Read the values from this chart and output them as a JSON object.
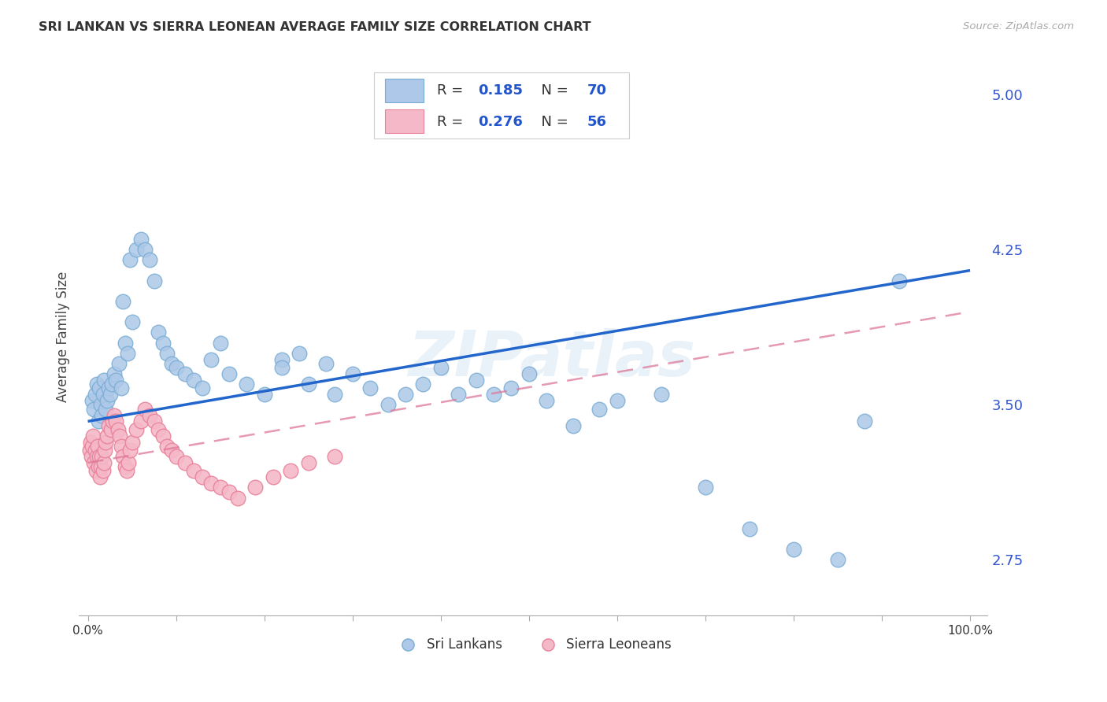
{
  "title": "SRI LANKAN VS SIERRA LEONEAN AVERAGE FAMILY SIZE CORRELATION CHART",
  "source": "Source: ZipAtlas.com",
  "ylabel": "Average Family Size",
  "watermark": "ZIPatlas",
  "sri_lankan_R": 0.185,
  "sri_lankan_N": 70,
  "sierra_leonean_R": 0.276,
  "sierra_leonean_N": 56,
  "sri_lankan_color": "#adc8e8",
  "sierra_leonean_color": "#f5b8c8",
  "sri_lankan_edge": "#7aadd4",
  "sierra_leonean_edge": "#e8829a",
  "regression_blue": "#2266cc",
  "regression_pink": "#dd7799",
  "ylim_min": 2.48,
  "ylim_max": 5.18,
  "xlim_min": -0.01,
  "xlim_max": 1.02,
  "yticks_right": [
    2.75,
    3.5,
    4.25,
    5.0
  ],
  "background": "#ffffff",
  "sl_x": [
    0.005,
    0.007,
    0.008,
    0.01,
    0.012,
    0.013,
    0.015,
    0.016,
    0.017,
    0.018,
    0.02,
    0.022,
    0.024,
    0.025,
    0.027,
    0.03,
    0.032,
    0.035,
    0.038,
    0.04,
    0.042,
    0.045,
    0.048,
    0.05,
    0.055,
    0.06,
    0.065,
    0.07,
    0.075,
    0.08,
    0.085,
    0.09,
    0.095,
    0.1,
    0.11,
    0.12,
    0.13,
    0.14,
    0.15,
    0.16,
    0.18,
    0.2,
    0.22,
    0.22,
    0.24,
    0.25,
    0.27,
    0.28,
    0.3,
    0.32,
    0.34,
    0.36,
    0.38,
    0.4,
    0.42,
    0.44,
    0.46,
    0.48,
    0.5,
    0.52,
    0.55,
    0.58,
    0.6,
    0.65,
    0.7,
    0.75,
    0.8,
    0.85,
    0.88,
    0.92
  ],
  "sl_y": [
    3.52,
    3.48,
    3.55,
    3.6,
    3.42,
    3.58,
    3.5,
    3.45,
    3.55,
    3.62,
    3.48,
    3.52,
    3.58,
    3.55,
    3.6,
    3.65,
    3.62,
    3.7,
    3.58,
    4.0,
    3.8,
    3.75,
    4.2,
    3.9,
    4.25,
    4.3,
    4.25,
    4.2,
    4.1,
    3.85,
    3.8,
    3.75,
    3.7,
    3.68,
    3.65,
    3.62,
    3.58,
    3.72,
    3.8,
    3.65,
    3.6,
    3.55,
    3.72,
    3.68,
    3.75,
    3.6,
    3.7,
    3.55,
    3.65,
    3.58,
    3.5,
    3.55,
    3.6,
    3.68,
    3.55,
    3.62,
    3.55,
    3.58,
    3.65,
    3.52,
    3.4,
    3.48,
    3.52,
    3.55,
    3.1,
    2.9,
    2.8,
    2.75,
    3.42,
    4.1
  ],
  "sle_x": [
    0.002,
    0.003,
    0.004,
    0.005,
    0.006,
    0.007,
    0.008,
    0.009,
    0.01,
    0.011,
    0.012,
    0.013,
    0.014,
    0.015,
    0.016,
    0.017,
    0.018,
    0.019,
    0.02,
    0.022,
    0.024,
    0.026,
    0.028,
    0.03,
    0.032,
    0.034,
    0.036,
    0.038,
    0.04,
    0.042,
    0.044,
    0.046,
    0.048,
    0.05,
    0.055,
    0.06,
    0.065,
    0.07,
    0.075,
    0.08,
    0.085,
    0.09,
    0.095,
    0.1,
    0.11,
    0.12,
    0.13,
    0.14,
    0.15,
    0.16,
    0.17,
    0.19,
    0.21,
    0.23,
    0.25,
    0.28
  ],
  "sle_y": [
    3.28,
    3.32,
    3.25,
    3.3,
    3.35,
    3.22,
    3.28,
    3.18,
    3.25,
    3.3,
    3.2,
    3.25,
    3.15,
    3.2,
    3.25,
    3.18,
    3.22,
    3.28,
    3.32,
    3.35,
    3.4,
    3.38,
    3.42,
    3.45,
    3.42,
    3.38,
    3.35,
    3.3,
    3.25,
    3.2,
    3.18,
    3.22,
    3.28,
    3.32,
    3.38,
    3.42,
    3.48,
    3.45,
    3.42,
    3.38,
    3.35,
    3.3,
    3.28,
    3.25,
    3.22,
    3.18,
    3.15,
    3.12,
    3.1,
    3.08,
    3.05,
    3.1,
    3.15,
    3.18,
    3.22,
    3.25
  ]
}
